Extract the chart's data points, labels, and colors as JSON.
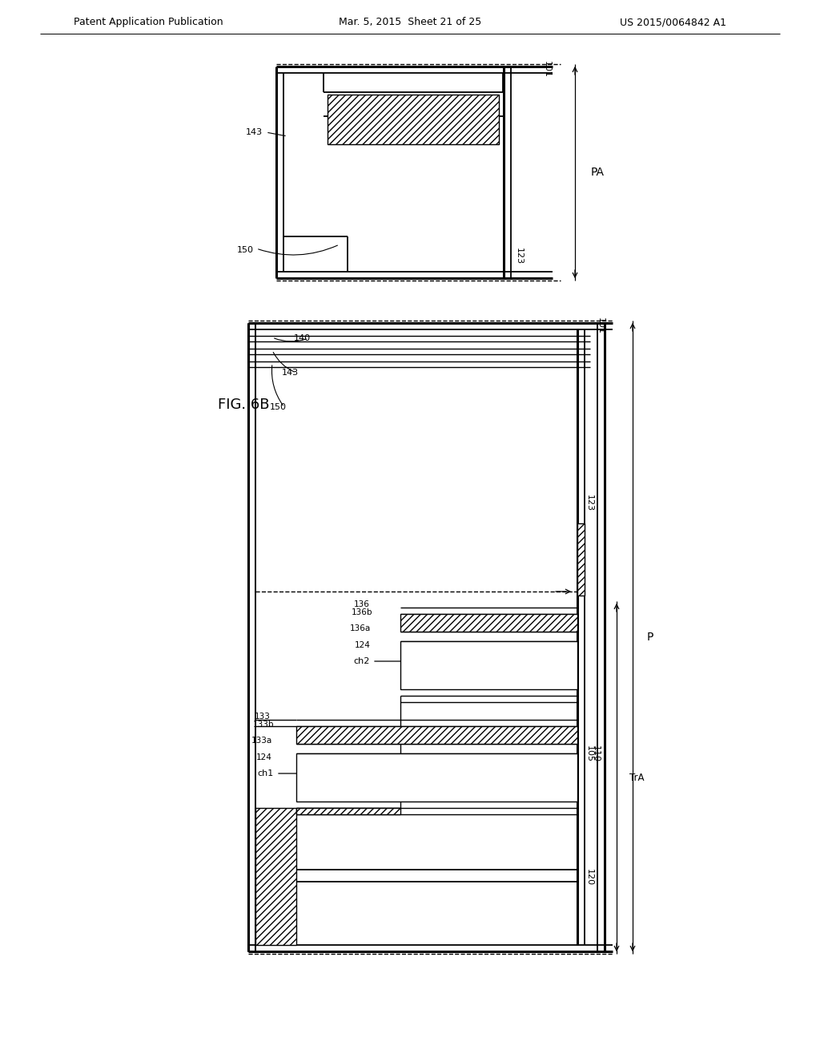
{
  "header_left": "Patent Application Publication",
  "header_mid": "Mar. 5, 2015  Sheet 21 of 25",
  "header_right": "US 2015/0064842 A1",
  "fig_label": "FIG. 6B",
  "bg": "#ffffff"
}
